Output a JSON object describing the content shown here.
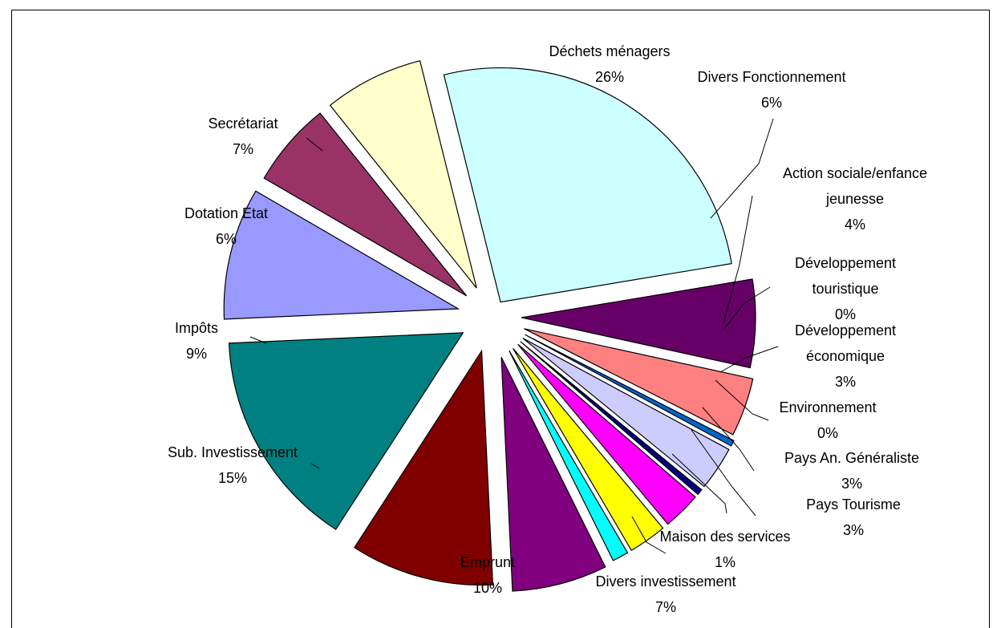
{
  "chart_data": {
    "type": "pie",
    "exploded": true,
    "start_angle_deg": -14,
    "direction": "clockwise",
    "slices": [
      {
        "label": "Déchets ménagers",
        "pct_label": "26%",
        "value": 26,
        "color": "#ccffff"
      },
      {
        "label": "Divers Fonctionnement",
        "pct_label": "6%",
        "value": 6,
        "color": "#660066"
      },
      {
        "label": "Action sociale/enfance jeunesse",
        "pct_label": "4%",
        "value": 4,
        "color": "#ff8080"
      },
      {
        "label": "Développement touristique",
        "pct_label": "0%",
        "value": 0.4,
        "color": "#0066cc"
      },
      {
        "label": "Développement économique",
        "pct_label": "3%",
        "value": 3,
        "color": "#ccccff"
      },
      {
        "label": "Environnement",
        "pct_label": "0%",
        "value": 0.4,
        "color": "#000080"
      },
      {
        "label": "Pays An. Généraliste",
        "pct_label": "3%",
        "value": 2.6,
        "color": "#ff00ff"
      },
      {
        "label": "Pays Tourisme",
        "pct_label": "3%",
        "value": 2.6,
        "color": "#ffff00"
      },
      {
        "label": "Maison des services",
        "pct_label": "1%",
        "value": 1.1,
        "color": "#00ffff"
      },
      {
        "label": "Divers investissement",
        "pct_label": "7%",
        "value": 6.5,
        "color": "#800080"
      },
      {
        "label": "Emprunt",
        "pct_label": "10%",
        "value": 9.8,
        "color": "#800000"
      },
      {
        "label": "Sub. Investissement",
        "pct_label": "15%",
        "value": 15,
        "color": "#008080"
      },
      {
        "label": "Impôts",
        "pct_label": "9%",
        "value": 9,
        "color": "#9999ff"
      },
      {
        "label": "Dotation Etat",
        "pct_label": "6%",
        "value": 5.8,
        "color": "#993366"
      },
      {
        "label": "Secrétariat",
        "pct_label": "7%",
        "value": 6.8,
        "color": "#ffffcc"
      }
    ],
    "label_lines": [
      [
        "Déchets ménagers",
        "26%"
      ],
      [
        "Divers Fonctionnement",
        "6%"
      ],
      [
        "Action sociale/enfance",
        "jeunesse",
        "4%"
      ],
      [
        "Développement",
        "touristique",
        "0%"
      ],
      [
        "Développement",
        "économique",
        "3%"
      ],
      [
        "Environnement",
        "0%"
      ],
      [
        "Pays An. Généraliste",
        "3%"
      ],
      [
        "Pays Tourisme",
        "3%"
      ],
      [
        "Maison des services",
        "1%"
      ],
      [
        "Divers investissement",
        "7%"
      ],
      [
        "Emprunt",
        "10%"
      ],
      [
        "Sub. Investissement",
        "15%"
      ],
      [
        "Impôts",
        "9%"
      ],
      [
        "Dotation Etat",
        "6%"
      ],
      [
        "Secrétariat",
        "7%"
      ]
    ]
  }
}
